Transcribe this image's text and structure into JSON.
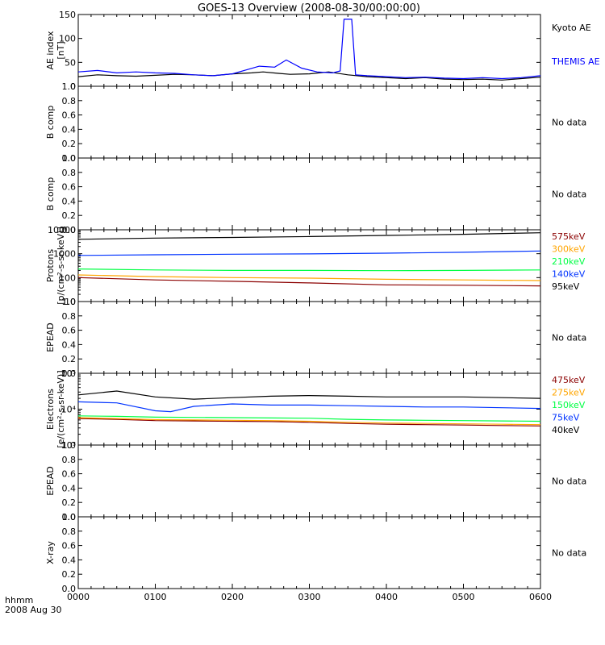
{
  "title": "GOES-13 Overview (2008-08-30/00:00:00)",
  "corner_label_1": "hhmm",
  "corner_label_2": "2008 Aug 30",
  "colors": {
    "black": "#000000",
    "blue": "#0000ff",
    "brown": "#8b0000",
    "orange": "#ffa500",
    "green": "#00ff44",
    "blue2": "#0033ff",
    "axis": "#000000"
  },
  "chart_data": {
    "type": "line",
    "x_axis": {
      "label": "hhmm",
      "range": [
        "0000",
        "0600"
      ],
      "ticks": [
        "0000",
        "0100",
        "0200",
        "0300",
        "0400",
        "0500",
        "0600"
      ]
    },
    "panels": [
      {
        "id": "ae",
        "ylabel": "AE index",
        "yunit": "[nT]",
        "yscale": "linear",
        "ylim": [
          0,
          150
        ],
        "yticks": [
          "0",
          "50",
          "100",
          "150"
        ],
        "series": [
          {
            "name": "Kyoto AE",
            "color": "#000000",
            "x": [
              0,
              0.25,
              0.5,
              0.75,
              1.0,
              1.25,
              1.5,
              1.75,
              2.0,
              2.25,
              2.4,
              2.6,
              2.75,
              3.0,
              3.25,
              3.5,
              3.75,
              4.0,
              4.25,
              4.5,
              4.75,
              5.0,
              5.25,
              5.5,
              5.75,
              6.0
            ],
            "y": [
              20,
              24,
              22,
              21,
              23,
              25,
              24,
              22,
              26,
              28,
              30,
              27,
              25,
              26,
              30,
              24,
              20,
              18,
              16,
              18,
              15,
              14,
              15,
              13,
              16,
              19
            ]
          },
          {
            "name": "THEMIS AE",
            "color": "#0000ff",
            "x": [
              0,
              0.25,
              0.5,
              0.75,
              1.0,
              1.25,
              1.5,
              1.75,
              2.0,
              2.2,
              2.35,
              2.55,
              2.7,
              2.9,
              3.1,
              3.3,
              3.4,
              3.45,
              3.55,
              3.6,
              3.75,
              4.0,
              4.25,
              4.5,
              4.75,
              5.0,
              5.25,
              5.5,
              5.75,
              6.0
            ],
            "y": [
              30,
              33,
              28,
              30,
              28,
              27,
              24,
              22,
              26,
              35,
              42,
              40,
              55,
              38,
              30,
              28,
              32,
              140,
              140,
              24,
              22,
              20,
              18,
              19,
              17,
              16,
              18,
              16,
              18,
              22
            ]
          }
        ]
      },
      {
        "id": "b1",
        "ylabel": "B comp",
        "yscale": "linear",
        "ylim": [
          0,
          1
        ],
        "yticks": [
          "0.0",
          "0.2",
          "0.4",
          "0.6",
          "0.8",
          "1.0"
        ],
        "status": "No data",
        "series": []
      },
      {
        "id": "b2",
        "ylabel": "B comp",
        "yscale": "linear",
        "ylim": [
          0,
          1
        ],
        "yticks": [
          "0.0",
          "0.2",
          "0.4",
          "0.6",
          "0.8",
          "1.0"
        ],
        "status": "No data",
        "series": []
      },
      {
        "id": "protons",
        "ylabel": "Protons",
        "yunit": "[p/(cm²-s-sr-keV)]",
        "yscale": "log",
        "ylim": [
          10,
          10000
        ],
        "yticks": [
          "10",
          "100",
          "1000",
          "10000"
        ],
        "series": [
          {
            "name": "575keV",
            "color": "#8b0000",
            "x": [
              0,
              1,
              2,
              3,
              4,
              5,
              6
            ],
            "y": [
              100,
              80,
              70,
              60,
              50,
              48,
              45
            ]
          },
          {
            "name": "300keV",
            "color": "#ffa500",
            "x": [
              0,
              1,
              2,
              3,
              4,
              5,
              6
            ],
            "y": [
              130,
              110,
              100,
              95,
              85,
              80,
              75
            ]
          },
          {
            "name": "210keV",
            "color": "#00ff44",
            "x": [
              0,
              1,
              2,
              3,
              4,
              5,
              6
            ],
            "y": [
              230,
              210,
              200,
              200,
              195,
              200,
              210
            ]
          },
          {
            "name": "140keV",
            "color": "#0033ff",
            "x": [
              0,
              1,
              2,
              3,
              4,
              5,
              6
            ],
            "y": [
              850,
              900,
              950,
              980,
              1050,
              1150,
              1300
            ]
          },
          {
            "name": "95keV",
            "color": "#000000",
            "x": [
              0,
              1,
              2,
              3,
              4,
              5,
              6
            ],
            "y": [
              4000,
              4500,
              4800,
              5200,
              5800,
              6500,
              7500
            ]
          }
        ]
      },
      {
        "id": "epead1",
        "ylabel": "EPEAD",
        "yscale": "linear",
        "ylim": [
          0,
          1
        ],
        "yticks": [
          "0.0",
          "0.2",
          "0.4",
          "0.6",
          "0.8",
          "1.0"
        ],
        "status": "No data",
        "series": []
      },
      {
        "id": "electrons",
        "ylabel": "Electrons",
        "yunit": "[e/(cm²-s-sr-keV)]",
        "yscale": "log",
        "ylim": [
          1000,
          100000
        ],
        "yticks": [
          "10³",
          "10⁴",
          "10⁵"
        ],
        "series": [
          {
            "name": "475keV",
            "color": "#8b0000",
            "x": [
              0,
              0.5,
              1,
              1.5,
              2,
              2.5,
              3,
              3.5,
              4,
              4.5,
              5,
              5.5,
              6
            ],
            "y": [
              5500,
              5200,
              4800,
              4700,
              4600,
              4500,
              4300,
              4000,
              3800,
              3700,
              3600,
              3500,
              3400
            ]
          },
          {
            "name": "275keV",
            "color": "#ffa500",
            "x": [
              0,
              0.5,
              1,
              1.5,
              2,
              2.5,
              3,
              3.5,
              4,
              4.5,
              5,
              5.5,
              6
            ],
            "y": [
              5800,
              5500,
              5100,
              5000,
              4900,
              4800,
              4600,
              4300,
              4100,
              4000,
              3900,
              3800,
              3700
            ]
          },
          {
            "name": "150keV",
            "color": "#00ff44",
            "x": [
              0,
              0.5,
              1,
              1.5,
              2,
              2.5,
              3,
              3.5,
              4,
              4.5,
              5,
              5.5,
              6
            ],
            "y": [
              6500,
              6300,
              6000,
              5900,
              5800,
              5700,
              5600,
              5200,
              5000,
              4900,
              4800,
              4700,
              4600
            ]
          },
          {
            "name": "75keV",
            "color": "#0033ff",
            "x": [
              0,
              0.5,
              1,
              1.2,
              1.5,
              2,
              2.5,
              3,
              3.5,
              4,
              4.5,
              5,
              5.5,
              6
            ],
            "y": [
              16000,
              15000,
              9000,
              8500,
              12000,
              14000,
              13000,
              13000,
              12500,
              12000,
              11500,
              11500,
              11000,
              10500
            ]
          },
          {
            "name": "40keV",
            "color": "#000000",
            "x": [
              0,
              0.5,
              1,
              1.5,
              2,
              2.5,
              3,
              3.5,
              4,
              4.5,
              5,
              5.5,
              6
            ],
            "y": [
              25000,
              32000,
              22000,
              19000,
              21000,
              23000,
              24000,
              23000,
              22000,
              22000,
              22000,
              21000,
              20000
            ]
          }
        ]
      },
      {
        "id": "epead2",
        "ylabel": "EPEAD",
        "yscale": "linear",
        "ylim": [
          0,
          1
        ],
        "yticks": [
          "0.0",
          "0.2",
          "0.4",
          "0.6",
          "0.8",
          "1.0"
        ],
        "status": "No data",
        "series": []
      },
      {
        "id": "xray",
        "ylabel": "X-ray",
        "yscale": "linear",
        "ylim": [
          0,
          1
        ],
        "yticks": [
          "0.0",
          "0.2",
          "0.4",
          "0.6",
          "0.8",
          "1.0"
        ],
        "status": "No data",
        "series": []
      }
    ]
  }
}
